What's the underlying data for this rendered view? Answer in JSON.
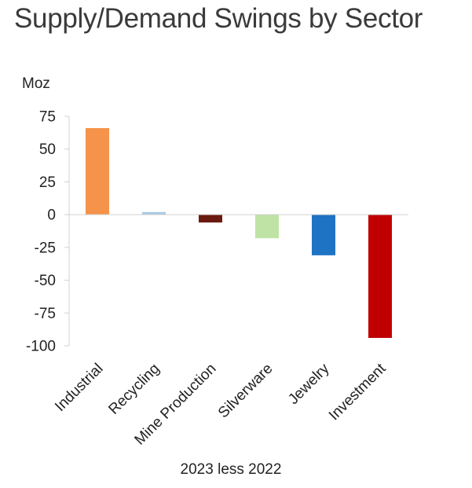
{
  "chart_data": {
    "type": "bar",
    "title": "Supply/Demand Swings by Sector",
    "ylabel": "Moz",
    "xlabel": "2023 less 2022",
    "categories": [
      "Industrial",
      "Recycling",
      "Mine Production",
      "Silverware",
      "Jewelry",
      "Investment"
    ],
    "values": [
      66,
      2,
      -6,
      -18,
      -31,
      -94
    ],
    "colors": [
      "#f5934a",
      "#a9c9e4",
      "#6b1a10",
      "#bfe3a5",
      "#1f73c4",
      "#c00000"
    ],
    "ylim": [
      -100,
      75
    ],
    "yticks": [
      75,
      50,
      25,
      0,
      -25,
      -50,
      -75,
      -100
    ],
    "ytick_labels": [
      "75",
      "50",
      "25",
      "0",
      "-25",
      "-50",
      "-75",
      "-100"
    ],
    "grid": false,
    "legend": "none"
  }
}
